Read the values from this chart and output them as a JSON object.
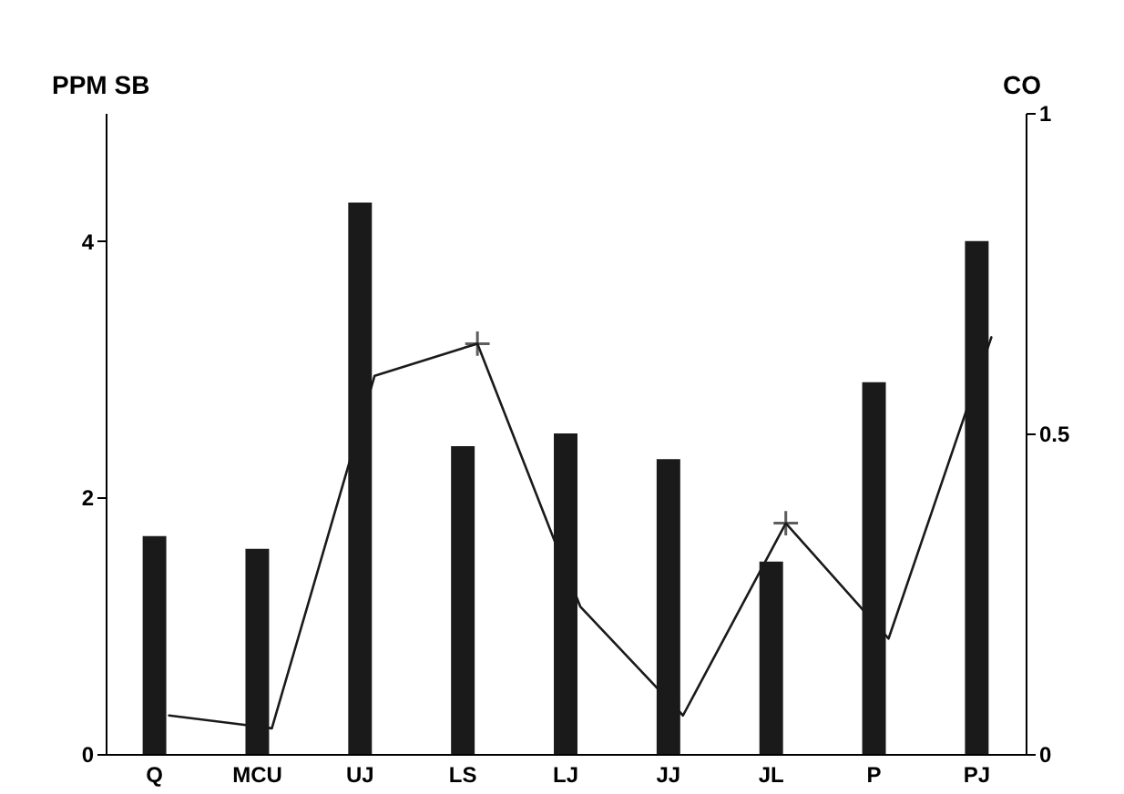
{
  "chart_data": {
    "type": "bar",
    "categories": [
      "Q",
      "MCU",
      "UJ",
      "LS",
      "LJ",
      "JJ",
      "JL",
      "P",
      "PJ"
    ],
    "ylabel": "PPM SB",
    "y2label": "CO",
    "series": [
      {
        "type": "bar",
        "color": "#1a1a1a",
        "values": [
          1.7,
          1.6,
          4.3,
          2.4,
          2.5,
          2.3,
          1.5,
          2.9,
          4.0
        ]
      },
      {
        "type": "line",
        "axis": "y2",
        "color": "#1a1a1a",
        "marker": "none",
        "values": [
          0.06,
          0.04,
          0.59,
          0.64,
          0.23,
          0.06,
          0.36,
          0.18,
          0.65
        ]
      },
      {
        "type": "scatter",
        "axis": "y2",
        "color": "#1a1a1a",
        "marker": "cross",
        "values": [
          null,
          null,
          null,
          0.64,
          null,
          null,
          0.36,
          null,
          null
        ]
      }
    ],
    "ylim": [
      0,
      5
    ],
    "yticks": [
      0,
      2,
      4
    ],
    "y2lim": [
      0,
      1
    ],
    "y2ticks": [
      0,
      {
        "value": 0.5,
        "label": "0.5"
      },
      1
    ],
    "grid": false
  }
}
